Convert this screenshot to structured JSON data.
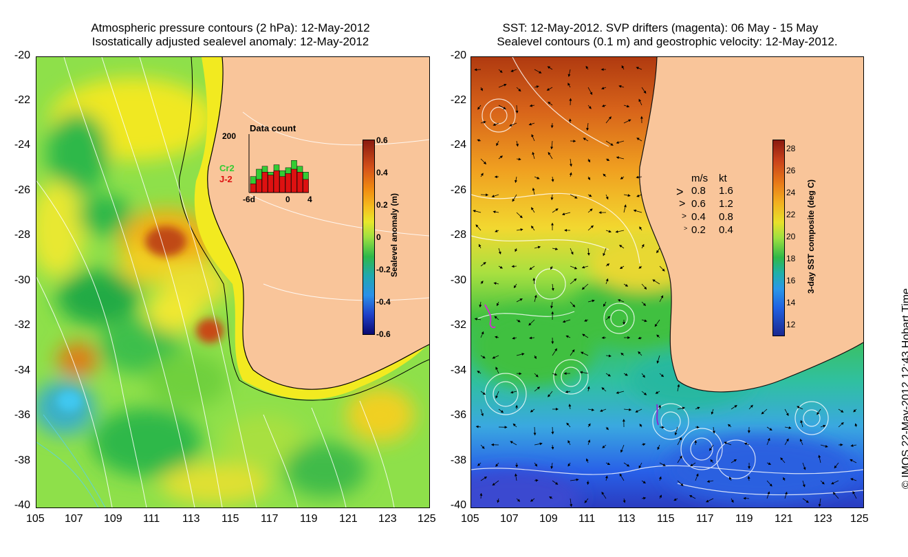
{
  "left_panel": {
    "title_line1": "Atmospheric pressure contours (2 hPa): 12-May-2012",
    "title_line2": "Isostatically adjusted sealevel anomaly: 12-May-2012",
    "inset": {
      "title": "Data count",
      "y_max_label": "200",
      "x_labels": [
        "-6d",
        "0",
        "4"
      ],
      "legend": [
        {
          "name": "Cr2",
          "color": "#33cc33"
        },
        {
          "name": "J-2",
          "color": "#dd1111"
        }
      ],
      "bars_green": [
        55,
        80,
        90,
        70,
        95,
        75,
        85,
        110,
        90,
        70
      ],
      "bars_red": [
        30,
        45,
        70,
        60,
        75,
        55,
        65,
        80,
        70,
        45
      ]
    },
    "colorbar": {
      "label": "Sealevel anomaly (m)",
      "ticks": [
        "0.6",
        "0.4",
        "0.2",
        "0",
        "-0.2",
        "-0.4",
        "-0.6"
      ]
    }
  },
  "right_panel": {
    "title_line1": "SST: 12-May-2012. SVP drifters (magenta): 06 May - 15 May",
    "title_line2": "Sealevel contours (0.1 m) and geostrophic velocity: 12-May-2012.",
    "velocity_legend": {
      "header_ms": "m/s",
      "header_kt": "kt",
      "rows": [
        {
          "ms": "0.8",
          "kt": "1.6"
        },
        {
          "ms": "0.6",
          "kt": "1.2"
        },
        {
          "ms": "0.4",
          "kt": "0.8"
        },
        {
          "ms": "0.2",
          "kt": "0.4"
        }
      ]
    },
    "colorbar": {
      "label": "3-day SST composite (deg C)",
      "ticks": [
        "28",
        "26",
        "24",
        "22",
        "20",
        "18",
        "16",
        "14",
        "12"
      ]
    }
  },
  "axes": {
    "y_ticks": [
      "-20",
      "-22",
      "-24",
      "-26",
      "-28",
      "-30",
      "-32",
      "-34",
      "-36",
      "-38",
      "-40"
    ],
    "x_ticks": [
      "105",
      "107",
      "109",
      "111",
      "113",
      "115",
      "117",
      "119",
      "121",
      "123",
      "125"
    ]
  },
  "footer": {
    "stamp": "© IMOS 22-May-2012 12:43 Hobart Time"
  },
  "colors": {
    "land": "#f9c59a",
    "coast_shelf": "#f4f000"
  }
}
